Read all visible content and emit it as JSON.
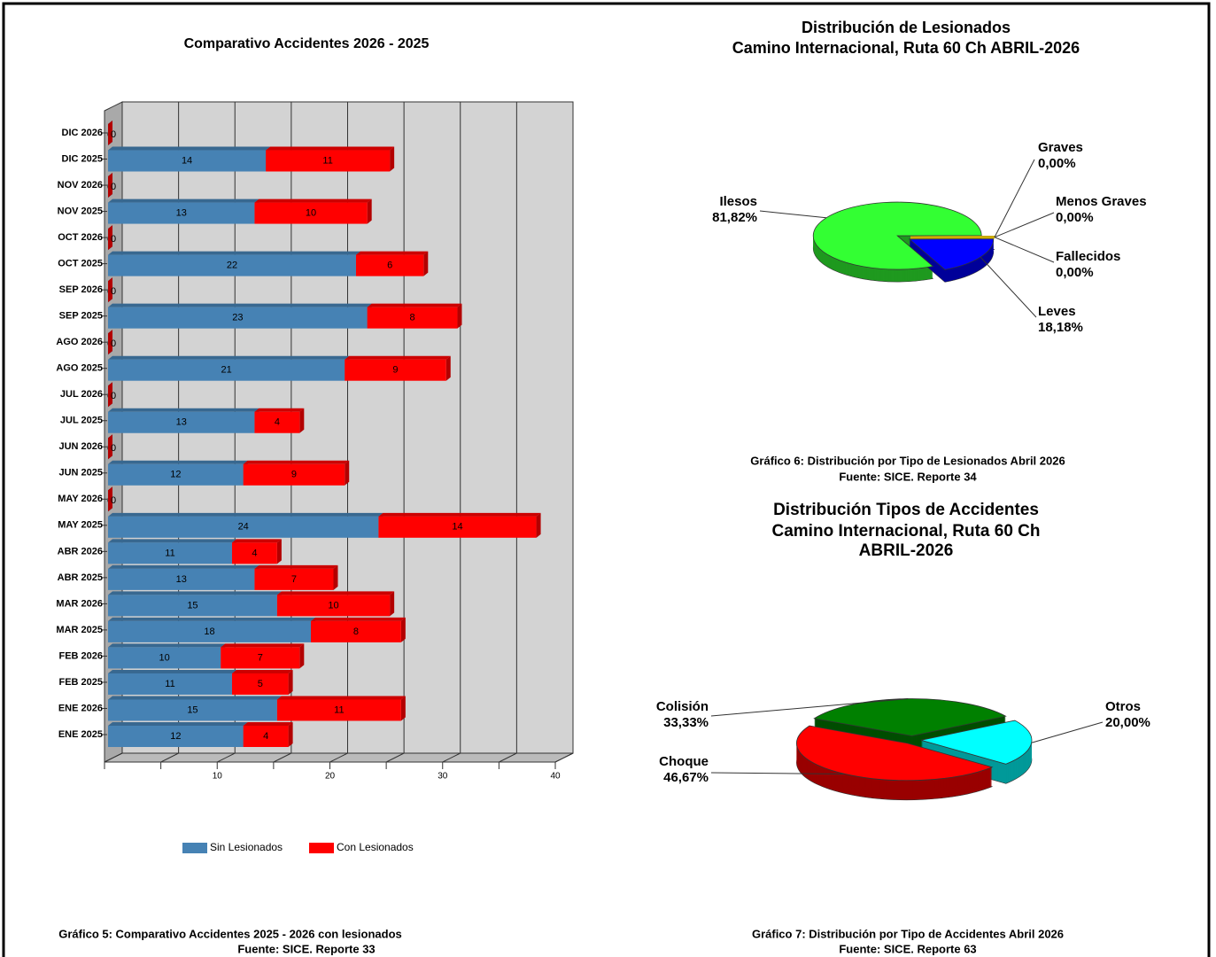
{
  "chart_data": [
    {
      "type": "bar",
      "orientation": "horizontal",
      "stacked": true,
      "title": "Comparativo Accidentes 2026 - 2025",
      "categories": [
        "DIC 2026",
        "DIC 2025",
        "NOV 2026",
        "NOV 2025",
        "OCT 2026",
        "OCT 2025",
        "SEP 2026",
        "SEP 2025",
        "AGO 2026",
        "AGO 2025",
        "JUL 2026",
        "JUL 2025",
        "JUN 2026",
        "JUN 2025",
        "MAY 2026",
        "MAY 2025",
        "ABR 2026",
        "ABR 2025",
        "MAR 2026",
        "MAR 2025",
        "FEB 2026",
        "FEB 2025",
        "ENE 2026",
        "ENE 2025"
      ],
      "series": [
        {
          "name": "Sin Lesionados",
          "color": "#4682b4",
          "values": [
            0,
            14,
            0,
            13,
            0,
            22,
            0,
            23,
            0,
            21,
            0,
            13,
            0,
            12,
            0,
            24,
            11,
            13,
            15,
            18,
            10,
            11,
            15,
            12
          ]
        },
        {
          "name": "Con Lesionados",
          "color": "#ff0000",
          "values": [
            0,
            11,
            0,
            10,
            0,
            6,
            0,
            8,
            0,
            9,
            0,
            4,
            0,
            9,
            0,
            14,
            4,
            7,
            10,
            8,
            7,
            5,
            11,
            4
          ]
        }
      ],
      "xlim": [
        0,
        40
      ],
      "xticks": [
        10,
        20,
        30,
        40
      ],
      "xminorticks": [
        0,
        5,
        15,
        25,
        35
      ],
      "grid": true,
      "legend": "bottom",
      "caption": "Gráfico 5: Comparativo Accidentes 2025 - 2026 con lesionados",
      "source": "Fuente: SICE. Reporte 33"
    },
    {
      "type": "pie",
      "title": [
        "Distribución de Lesionados",
        "Camino Internacional, Ruta 60 Ch ABRIL-2026"
      ],
      "labels": [
        "Ilesos",
        "Graves",
        "Menos Graves",
        "Fallecidos",
        "Leves"
      ],
      "values": [
        81.82,
        0,
        0,
        0,
        18.18
      ],
      "value_labels": [
        "81,82%",
        "0,00%",
        "0,00%",
        "0,00%",
        "18,18%"
      ],
      "colors": [
        "#33ff33",
        "#ff8c00",
        "#a0a0a0",
        "#ffd700",
        "#0000ff"
      ],
      "caption": "Gráfico 6: Distribución por Tipo de Lesionados Abril 2026",
      "source": "Fuente: SICE. Reporte 34"
    },
    {
      "type": "pie",
      "title": [
        "Distribución Tipos de Accidentes",
        "Camino Internacional, Ruta 60 Ch",
        "ABRIL-2026"
      ],
      "labels": [
        "Colisión",
        "Otros",
        "Choque"
      ],
      "values": [
        33.33,
        20.0,
        46.67
      ],
      "value_labels": [
        "33,33%",
        "20,00%",
        "46,67%"
      ],
      "colors": [
        "#008000",
        "#00ffff",
        "#ff0000"
      ],
      "caption": "Gráfico 7: Distribución por Tipo de Accidentes Abril 2026",
      "source": "Fuente: SICE. Reporte 63"
    }
  ]
}
